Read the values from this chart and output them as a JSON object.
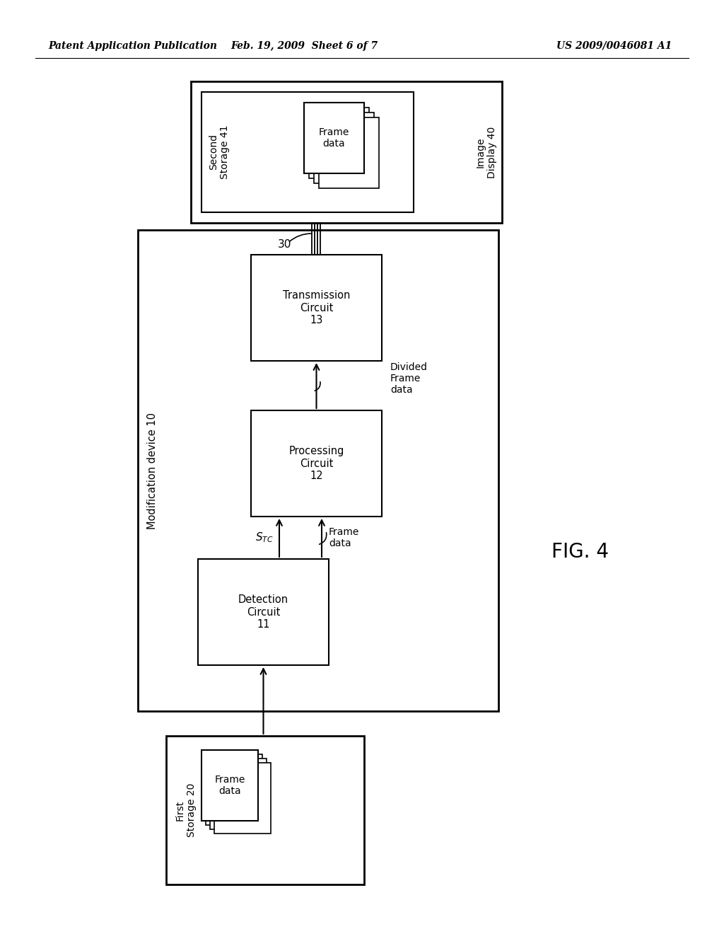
{
  "bg_color": "#ffffff",
  "header_left": "Patent Application Publication",
  "header_mid": "Feb. 19, 2009  Sheet 6 of 7",
  "header_right": "US 2009/0046081 A1",
  "fig_label": "FIG. 4",
  "mod_device_label": "Modification device 10",
  "image_display_label": "Image\nDisplay 40",
  "second_storage_label": "Second\nStorage 41",
  "frame_data_top": "Frame\ndata",
  "frame_data_bot": "Frame\ndata",
  "transmission_label": "Transmission\nCircuit\n13",
  "processing_label": "Processing\nCircuit\n12",
  "detection_label": "Detection\nCircuit\n11",
  "first_storage_label": "First\nStorage 20",
  "divided_label": "Divided\nFrame\ndata",
  "bus_label": "30"
}
